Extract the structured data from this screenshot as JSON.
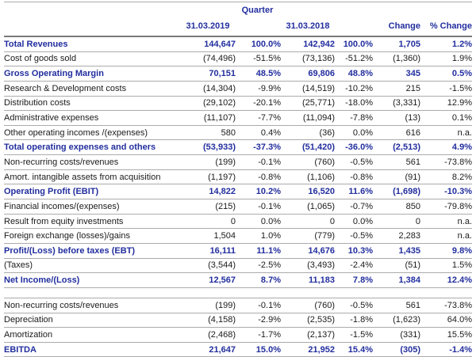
{
  "colors": {
    "accent_blue": "#222E9E",
    "text_black": "#1a1a1a",
    "rule_gray": "#ababab",
    "thick_rule_gray": "#7a7a7a",
    "background": "#ffffff"
  },
  "header": {
    "quarter": "Quarter",
    "date_2019": "31.03.2019",
    "date_2018": "31.03.2018",
    "change": "Change",
    "pct_change": "% Change"
  },
  "columns_order": [
    "v2019",
    "p2019",
    "v2018",
    "p2018",
    "change",
    "pct_change"
  ],
  "sections": [
    {
      "name": "profit-and-loss",
      "rows": [
        {
          "label": "Total Revenues",
          "values": [
            "144,647",
            "100.0%",
            "142,942",
            "100.0%",
            "1,705",
            "1.2%"
          ],
          "emphasis": true
        },
        {
          "label": "Cost of goods sold",
          "values": [
            "(74,496)",
            "-51.5%",
            "(73,136)",
            "-51.2%",
            "(1,360)",
            "1.9%"
          ],
          "emphasis": false
        },
        {
          "label": "Gross Operating Margin",
          "values": [
            "70,151",
            "48.5%",
            "69,806",
            "48.8%",
            "345",
            "0.5%"
          ],
          "emphasis": true
        },
        {
          "label": "Research & Development costs",
          "values": [
            "(14,304)",
            "-9.9%",
            "(14,519)",
            "-10.2%",
            "215",
            "-1.5%"
          ],
          "emphasis": false
        },
        {
          "label": "Distribution costs",
          "values": [
            "(29,102)",
            "-20.1%",
            "(25,771)",
            "-18.0%",
            "(3,331)",
            "12.9%"
          ],
          "emphasis": false
        },
        {
          "label": "Administrative expenses",
          "values": [
            "(11,107)",
            "-7.7%",
            "(11,094)",
            "-7.8%",
            "(13)",
            "0.1%"
          ],
          "emphasis": false
        },
        {
          "label": "Other operating incomes /(expenses)",
          "values": [
            "580",
            "0.4%",
            "(36)",
            "0.0%",
            "616",
            "n.a."
          ],
          "emphasis": false
        },
        {
          "label": "Total operating expenses and others",
          "values": [
            "(53,933)",
            "-37.3%",
            "(51,420)",
            "-36.0%",
            "(2,513)",
            "4.9%"
          ],
          "emphasis": true
        },
        {
          "label": "Non-recurring costs/revenues",
          "values": [
            "(199)",
            "-0.1%",
            "(760)",
            "-0.5%",
            "561",
            "-73.8%"
          ],
          "emphasis": false
        },
        {
          "label": "Amort. intangible assets from acquisition",
          "values": [
            "(1,197)",
            "-0.8%",
            "(1,106)",
            "-0.8%",
            "(91)",
            "8.2%"
          ],
          "emphasis": false
        },
        {
          "label": "Operating Profit (EBIT)",
          "values": [
            "14,822",
            "10.2%",
            "16,520",
            "11.6%",
            "(1,698)",
            "-10.3%"
          ],
          "emphasis": true
        },
        {
          "label": "Financial incomes/(expenses)",
          "values": [
            "(215)",
            "-0.1%",
            "(1,065)",
            "-0.7%",
            "850",
            "-79.8%"
          ],
          "emphasis": false
        },
        {
          "label": "Result from equity investments",
          "values": [
            "0",
            "0.0%",
            "0",
            "0.0%",
            "0",
            "n.a."
          ],
          "emphasis": false
        },
        {
          "label": "Foreign exchange (losses)/gains",
          "values": [
            "1,504",
            "1.0%",
            "(779)",
            "-0.5%",
            "2,283",
            "n.a."
          ],
          "emphasis": false
        },
        {
          "label": "Profit/(Loss) before taxes (EBT)",
          "values": [
            "16,111",
            "11.1%",
            "14,676",
            "10.3%",
            "1,435",
            "9.8%"
          ],
          "emphasis": true
        },
        {
          "label": "(Taxes)",
          "values": [
            "(3,544)",
            "-2.5%",
            "(3,493)",
            "-2.4%",
            "(51)",
            "1.5%"
          ],
          "emphasis": false
        },
        {
          "label": "Net Income/(Loss)",
          "values": [
            "12,567",
            "8.7%",
            "11,183",
            "7.8%",
            "1,384",
            "12.4%"
          ],
          "emphasis": true
        }
      ]
    },
    {
      "name": "ebitda-reconciliation",
      "rows": [
        {
          "label": "Non-recurring costs/revenues",
          "values": [
            "(199)",
            "-0.1%",
            "(760)",
            "-0.5%",
            "561",
            "-73.8%"
          ],
          "emphasis": false
        },
        {
          "label": "Depreciation",
          "values": [
            "(4,158)",
            "-2.9%",
            "(2,535)",
            "-1.8%",
            "(1,623)",
            "64.0%"
          ],
          "emphasis": false
        },
        {
          "label": "Amortization",
          "values": [
            "(2,468)",
            "-1.7%",
            "(2,137)",
            "-1.5%",
            "(331)",
            "15.5%"
          ],
          "emphasis": false
        },
        {
          "label": "EBITDA",
          "values": [
            "21,647",
            "15.0%",
            "21,952",
            "15.4%",
            "(305)",
            "-1.4%"
          ],
          "emphasis": true
        }
      ]
    }
  ]
}
